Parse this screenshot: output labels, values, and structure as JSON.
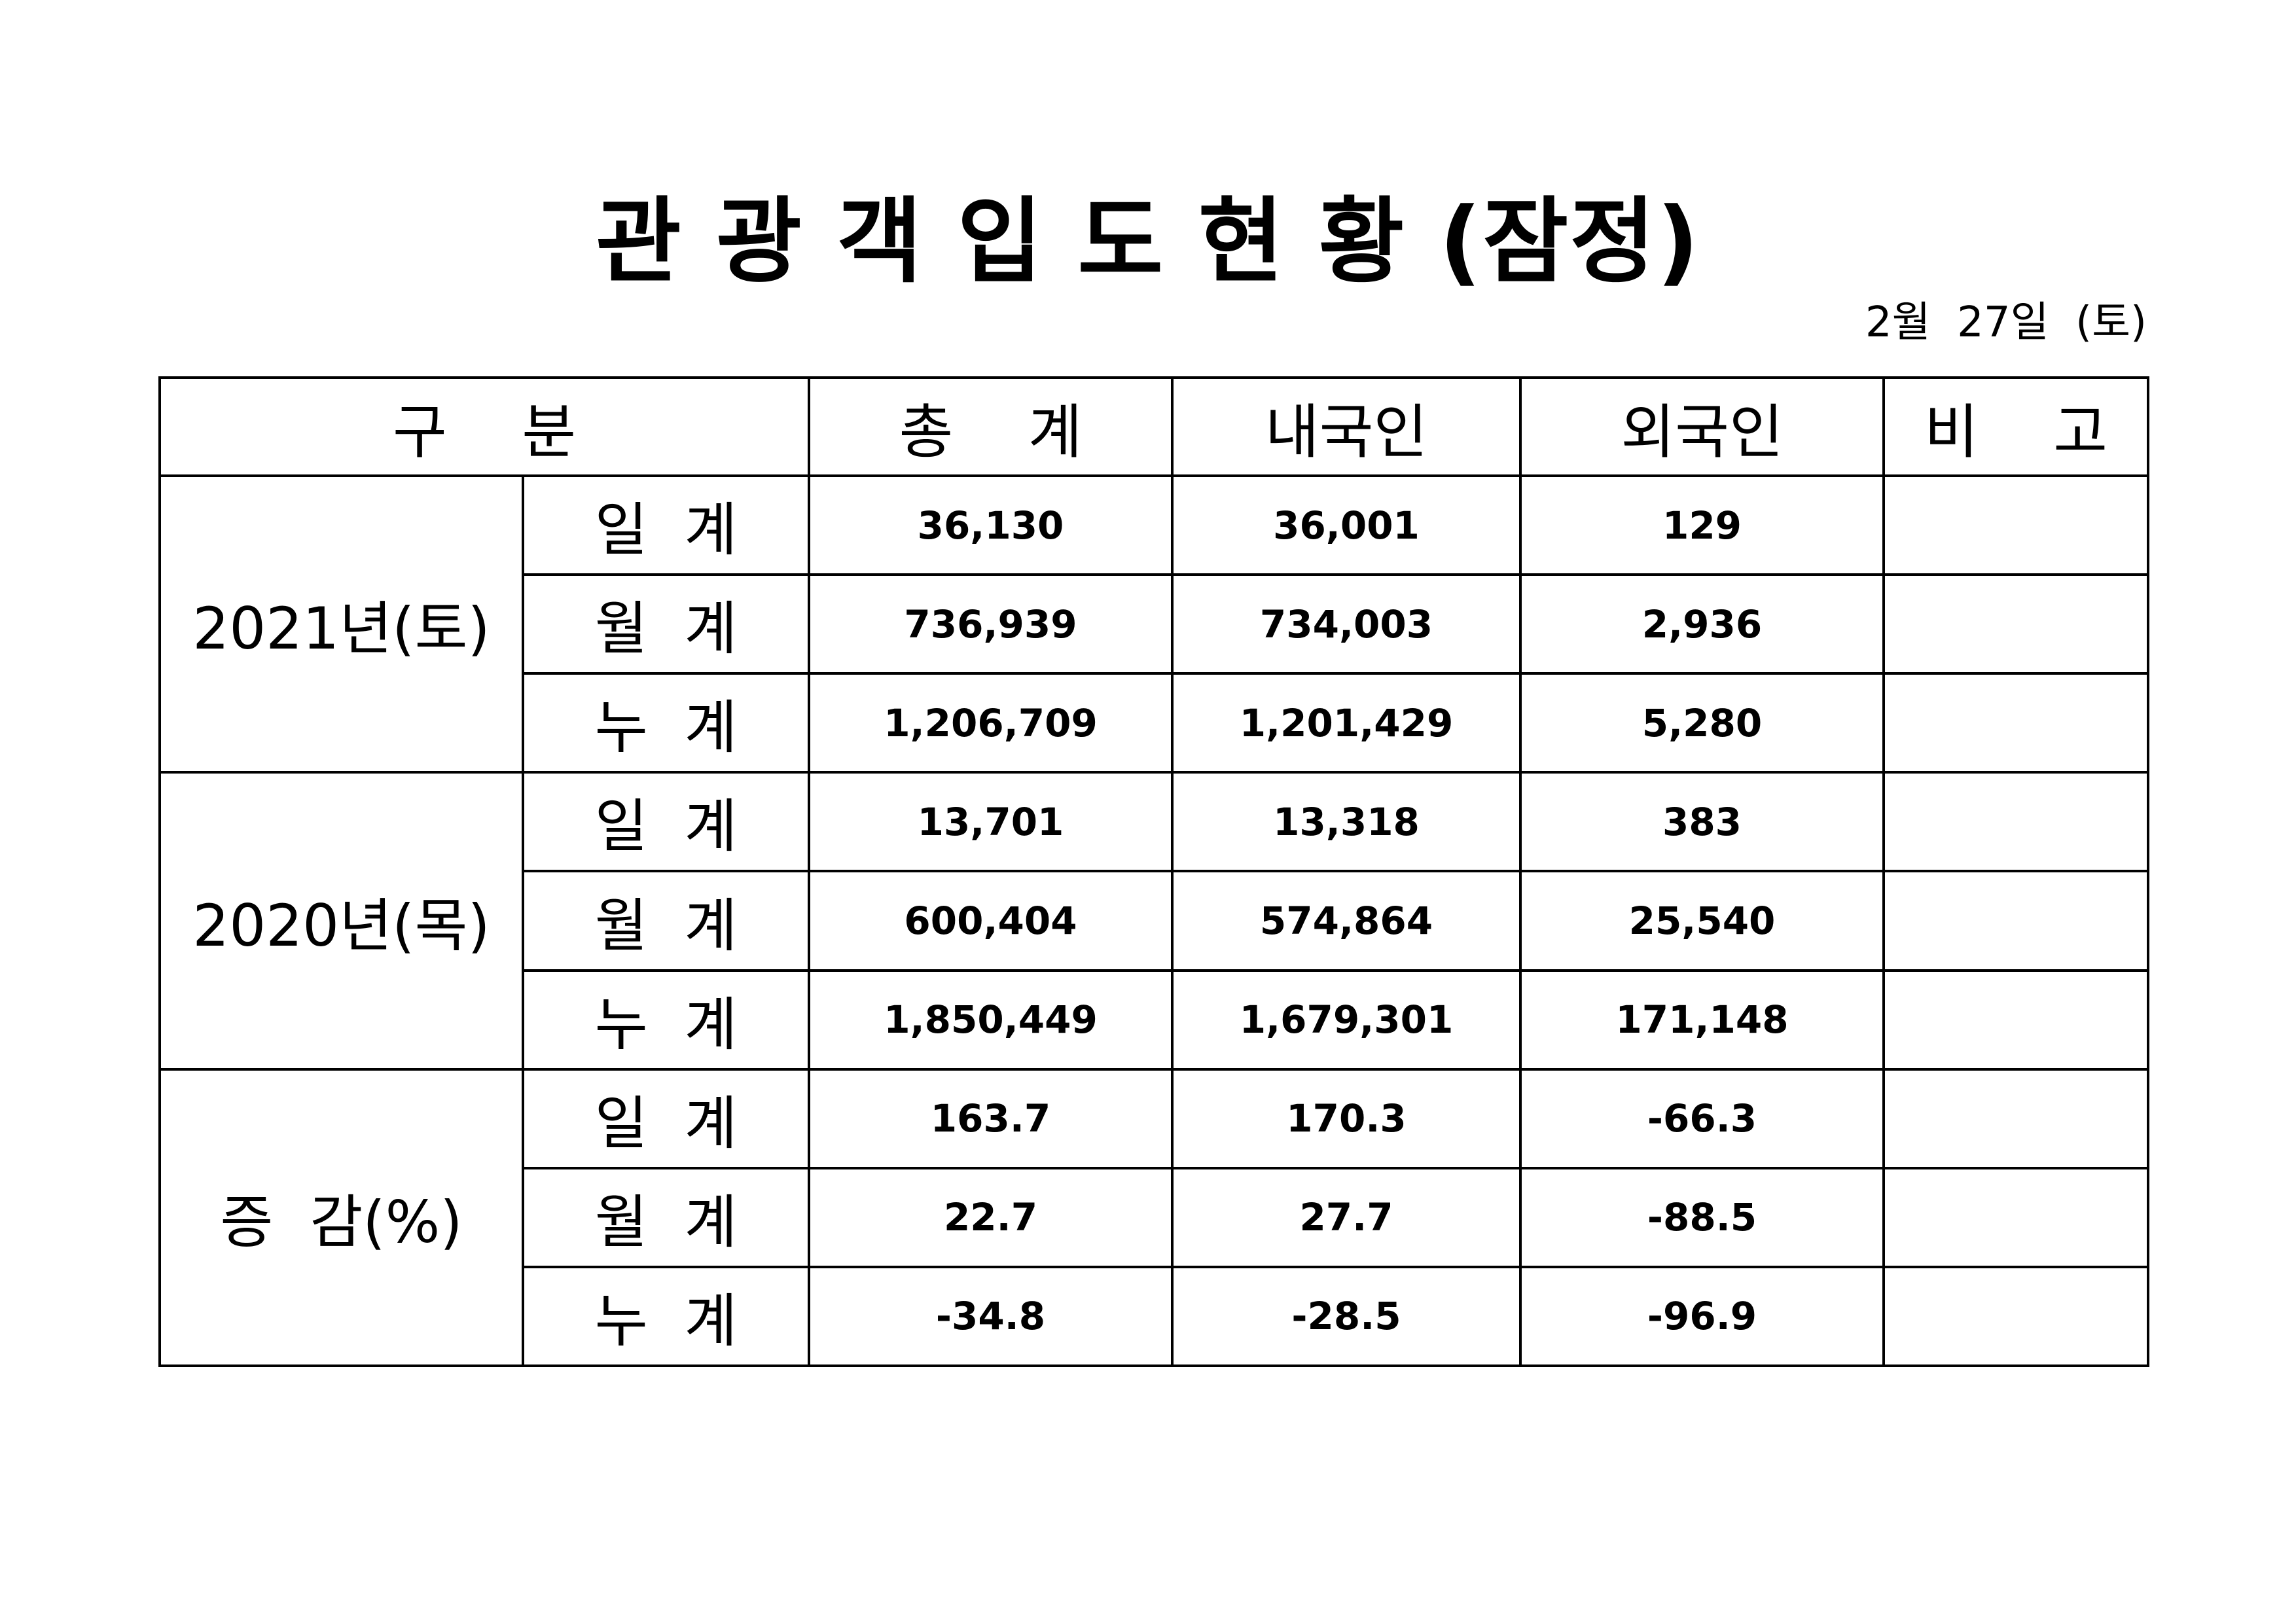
{
  "document": {
    "title": "관 광 객 입 도 현 황 (잠정)",
    "date": "2월  27일  (토)"
  },
  "table": {
    "headers": {
      "category": "구    분",
      "total": "총    계",
      "domestic": "내국인",
      "foreign": "외국인",
      "note": "비    고"
    },
    "groups": [
      {
        "label": "2021년(토)",
        "rows": [
          {
            "type": "일  계",
            "total": "36,130",
            "domestic": "36,001",
            "foreign": "129",
            "note": ""
          },
          {
            "type": "월  계",
            "total": "736,939",
            "domestic": "734,003",
            "foreign": "2,936",
            "note": ""
          },
          {
            "type": "누  계",
            "total": "1,206,709",
            "domestic": "1,201,429",
            "foreign": "5,280",
            "note": ""
          }
        ]
      },
      {
        "label": "2020년(목)",
        "rows": [
          {
            "type": "일  계",
            "total": "13,701",
            "domestic": "13,318",
            "foreign": "383",
            "note": ""
          },
          {
            "type": "월  계",
            "total": "600,404",
            "domestic": "574,864",
            "foreign": "25,540",
            "note": ""
          },
          {
            "type": "누  계",
            "total": "1,850,449",
            "domestic": "1,679,301",
            "foreign": "171,148",
            "note": ""
          }
        ]
      },
      {
        "label": "증  감(%)",
        "rows": [
          {
            "type": "일  계",
            "total": "163.7",
            "domestic": "170.3",
            "foreign": "-66.3",
            "note": ""
          },
          {
            "type": "월  계",
            "total": "22.7",
            "domestic": "27.7",
            "foreign": "-88.5",
            "note": ""
          },
          {
            "type": "누  계",
            "total": "-34.8",
            "domestic": "-28.5",
            "foreign": "-96.9",
            "note": ""
          }
        ]
      }
    ]
  }
}
